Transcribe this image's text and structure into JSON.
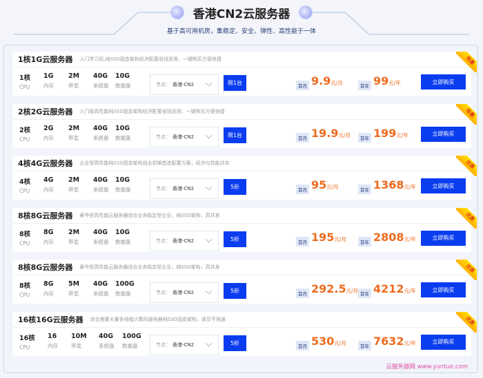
{
  "header": {
    "title": "香港CN2云服务器",
    "subtitle": "基于高可用机房，集稳定、安全、弹性、高性能于一体"
  },
  "labels": {
    "cpu": "CPU",
    "mem": "内存",
    "bw": "带宽",
    "sys": "系统盘",
    "data": "数据盘",
    "node": "节点：",
    "month_badge": "首月",
    "year_badge": "首年",
    "month_unit": "元/月",
    "year_unit": "元/年",
    "buy": "立即购买"
  },
  "watermark": "云服务器网 www.yuntue.com",
  "accent": "#0a3cf0",
  "price_color": "#ed6b1e",
  "plans": [
    {
      "title": "1核1G云服务器",
      "desc": "入门学习机,纯SSD固态架构经济配置省钱适用，一键购买方便快捷",
      "cpu": "1核",
      "mem": "1G",
      "bw": "2M",
      "sys": "40G",
      "data": "10G",
      "node": "香港-CN2",
      "tag": "限1台",
      "month": "9.9",
      "year": "99",
      "ribbon": "限量"
    },
    {
      "title": "2核2G云服务器",
      "desc": "入门级高性能纯SSD固态架构经济配置省钱适用，一键购买方便快捷",
      "cpu": "2核",
      "mem": "2G",
      "bw": "2M",
      "sys": "40G",
      "data": "10G",
      "node": "香港-CN2",
      "tag": "限1台",
      "month": "19.9",
      "year": "199",
      "ribbon": "限量"
    },
    {
      "title": "4核4G云服务器",
      "desc": "企业型高性能纯SSD固态架构创业初期首选配置方案，经济与性能并存",
      "cpu": "4核",
      "mem": "4G",
      "bw": "2M",
      "sys": "40G",
      "data": "10G",
      "node": "香港-CN2",
      "tag": "5折",
      "month": "95",
      "year": "1368",
      "ribbon": "优惠"
    },
    {
      "title": "8核8G云服务器",
      "desc": "豪华型高性能云服务器适合业务稳定型企业，纯SSD架构，高并发",
      "cpu": "8核",
      "mem": "8G",
      "bw": "2M",
      "sys": "40G",
      "data": "10G",
      "node": "香港-CN2",
      "tag": "5折",
      "month": "195",
      "year": "2808",
      "ribbon": "优惠"
    },
    {
      "title": "8核8G云服务器",
      "desc": "豪华型高性能云服务器适合业务稳定型企业，纯SSD架构，高并发",
      "cpu": "8核",
      "mem": "8G",
      "bw": "5M",
      "sys": "40G",
      "data": "100G",
      "node": "香港-CN2",
      "tag": "5折",
      "month": "292.5",
      "year": "4212",
      "ribbon": "优惠"
    },
    {
      "title": "16核16G云服务器",
      "desc": "适合需要大量多线程计算的服务器纯SSD固态架构，读写不限速",
      "cpu": "16核",
      "mem": "16",
      "bw": "10M",
      "sys": "40G",
      "data": "100G",
      "node": "香港-CN2",
      "tag": "5折",
      "month": "530",
      "year": "7632",
      "ribbon": "优惠"
    }
  ]
}
